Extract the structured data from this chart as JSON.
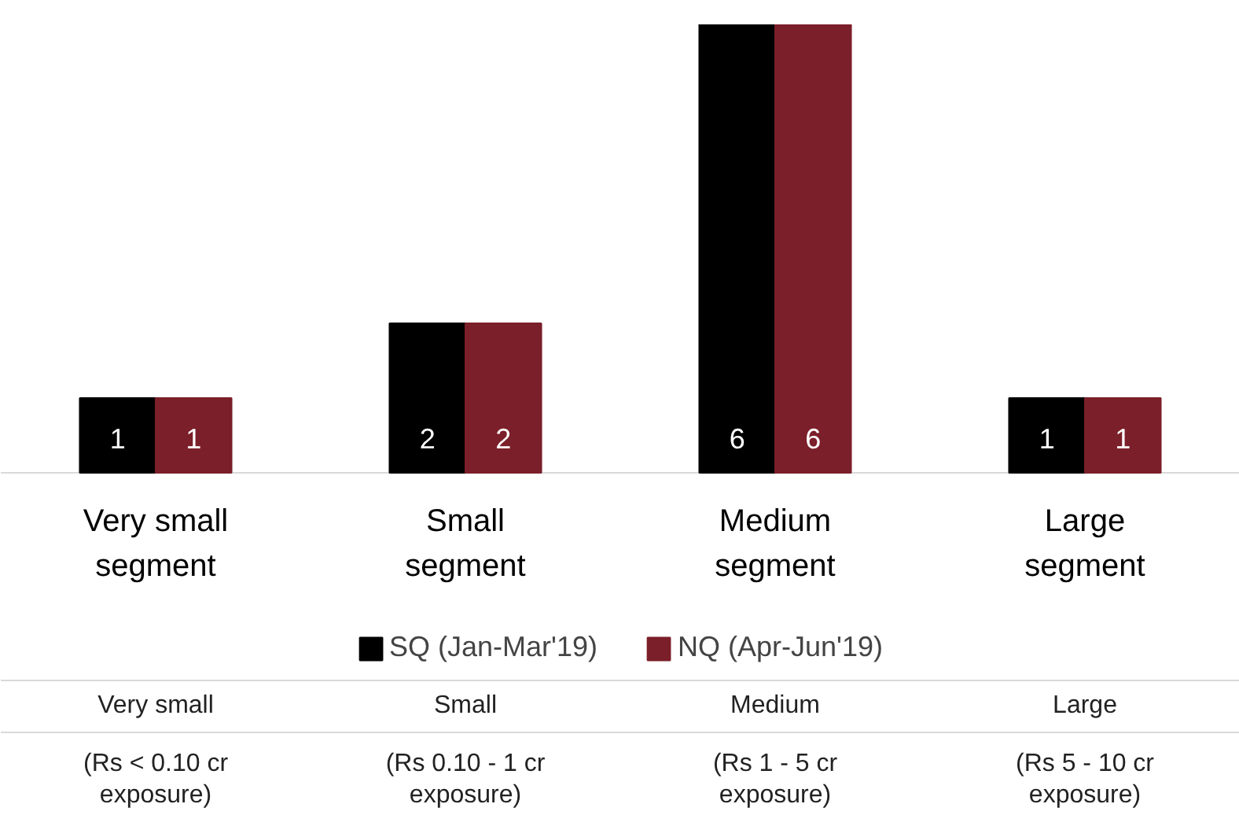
{
  "chart_data": {
    "type": "bar",
    "categories": [
      "Very small segment",
      "Small segment",
      "Medium segment",
      "Large segment"
    ],
    "series": [
      {
        "name": "SQ (Jan-Mar'19)",
        "color": "#000000",
        "values": [
          1,
          2,
          6,
          1
        ]
      },
      {
        "name": "NQ (Apr-Jun'19)",
        "color": "#7b1f2a",
        "values": [
          1,
          2,
          6,
          1
        ]
      }
    ],
    "data_labels": true,
    "legend": "bottom",
    "annotations": [
      "Very small",
      "Small",
      "Medium",
      "Large",
      "(Rs < 0.10 cr exposure)",
      "(Rs 0.10 - 1 cr exposure)",
      "(Rs 1 - 5 cr exposure)",
      "(Rs 5 - 10 cr exposure)"
    ]
  }
}
